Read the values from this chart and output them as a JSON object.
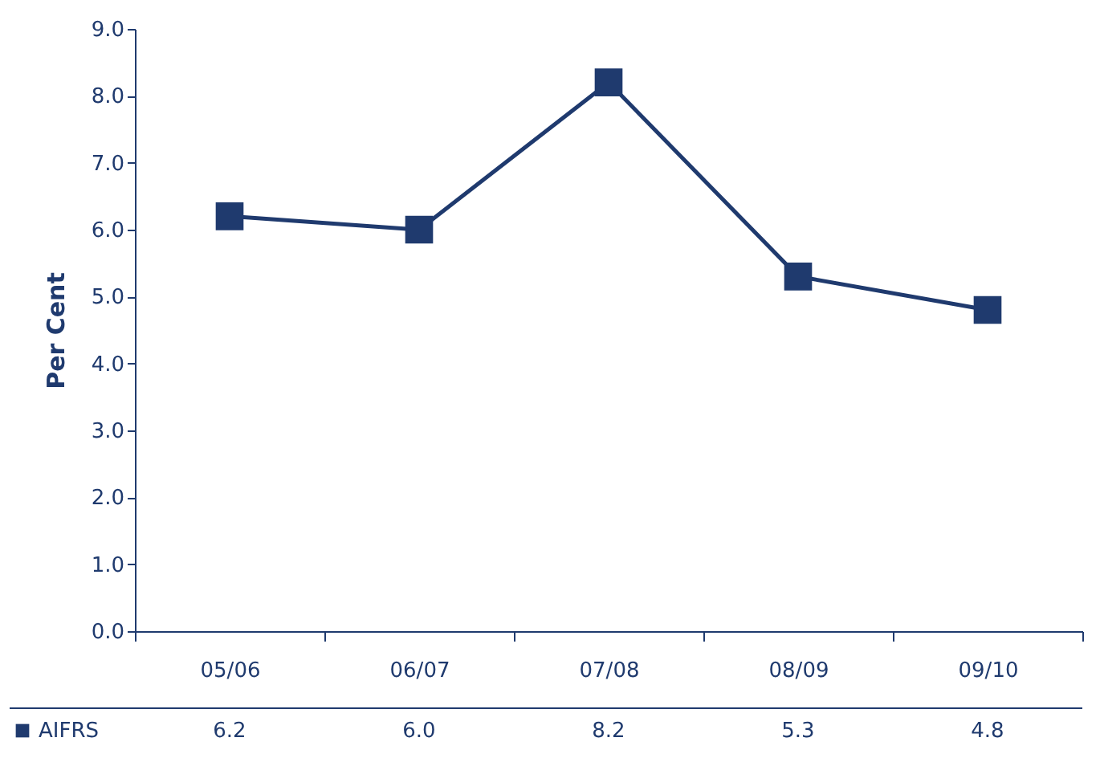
{
  "chart_data": {
    "type": "line",
    "ylabel": "Per Cent",
    "categories": [
      "05/06",
      "06/07",
      "07/08",
      "08/09",
      "09/10"
    ],
    "series": [
      {
        "name": "AIFRS",
        "color": "#1f3a6e",
        "values": [
          6.2,
          6.0,
          8.2,
          5.3,
          4.8
        ],
        "value_labels": [
          "6.2",
          "6.0",
          "8.2",
          "5.3",
          "4.8"
        ]
      }
    ],
    "ylim": [
      0,
      9
    ],
    "yticks": [
      {
        "value": 0,
        "label": "0.0"
      },
      {
        "value": 1,
        "label": "1.0"
      },
      {
        "value": 2,
        "label": "2.0"
      },
      {
        "value": 3,
        "label": "3.0"
      },
      {
        "value": 4,
        "label": "4.0"
      },
      {
        "value": 5,
        "label": "5.0"
      },
      {
        "value": 6,
        "label": "6.0"
      },
      {
        "value": 7,
        "label": "7.0"
      },
      {
        "value": 8,
        "label": "8.0"
      },
      {
        "value": 9,
        "label": "9.0"
      }
    ],
    "marker": "square",
    "line_style": "solid",
    "grid": false,
    "legend": "bottom left"
  }
}
